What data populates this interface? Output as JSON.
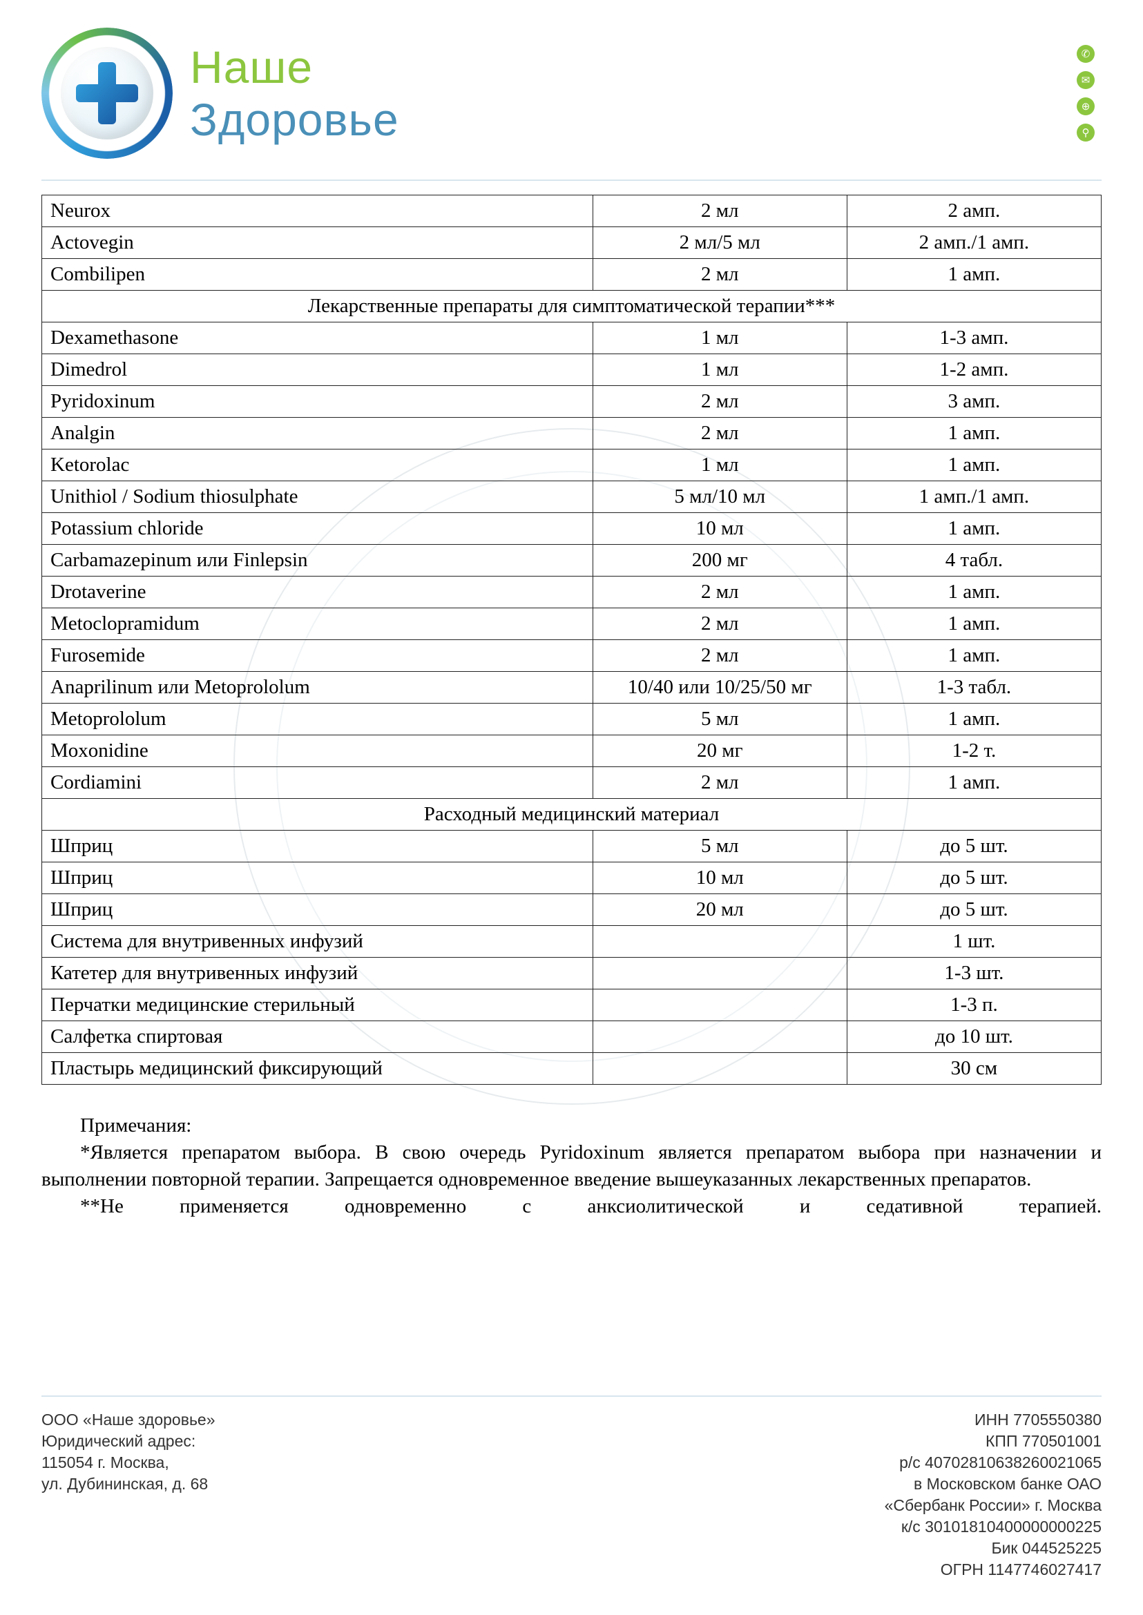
{
  "brand": {
    "line1": "Наше",
    "line2": "Здоровье"
  },
  "colors": {
    "brand_green": "#8cc63f",
    "brand_blue": "#4a90b8",
    "rule": "#d8e6ee",
    "table_border": "#222222",
    "text": "#000000",
    "footer_text": "#333333",
    "watermark": "#d0d8dd"
  },
  "typography": {
    "body_font": "Times New Roman",
    "body_size_pt": 14,
    "brand_font": "Arial",
    "brand_size_pt": 50,
    "footer_font": "Arial",
    "footer_size_pt": 11
  },
  "sections": [
    {
      "header": null,
      "rows": [
        {
          "name": "Neurox",
          "dose": "2 мл",
          "qty": "2 амп."
        },
        {
          "name": "Actovegin",
          "dose": "2 мл/5 мл",
          "qty": "2 амп./1 амп."
        },
        {
          "name": "Combilipen",
          "dose": "2 мл",
          "qty": "1 амп."
        }
      ]
    },
    {
      "header": "Лекарственные препараты для симптоматической терапии***",
      "rows": [
        {
          "name": "Dexamethasone",
          "dose": "1 мл",
          "qty": "1-3 амп."
        },
        {
          "name": "Dimedrol",
          "dose": "1 мл",
          "qty": "1-2 амп."
        },
        {
          "name": "Pyridoxinum",
          "dose": "2 мл",
          "qty": "3 амп."
        },
        {
          "name": "Analgin",
          "dose": "2 мл",
          "qty": "1 амп."
        },
        {
          "name": "Ketorolac",
          "dose": "1 мл",
          "qty": "1 амп."
        },
        {
          "name": "Unithiol / Sodium thiosulphate",
          "dose": "5 мл/10 мл",
          "qty": "1 амп./1 амп."
        },
        {
          "name": "Potassium chloride",
          "dose": "10 мл",
          "qty": "1 амп."
        },
        {
          "name": "Carbamazepinum или Finlepsin",
          "dose": "200 мг",
          "qty": "4 табл."
        },
        {
          "name": "Drotaverine",
          "dose": "2 мл",
          "qty": "1 амп."
        },
        {
          "name": "Metoclopramidum",
          "dose": "2 мл",
          "qty": "1 амп."
        },
        {
          "name": "Furosemide",
          "dose": "2 мл",
          "qty": "1 амп."
        },
        {
          "name": "Anaprilinum или Metoprololum",
          "dose": "10/40 или 10/25/50 мг",
          "qty": "1-3 табл."
        },
        {
          "name": "Metoprololum",
          "dose": "5 мл",
          "qty": "1 амп."
        },
        {
          "name": "Moxonidine",
          "dose": "20 мг",
          "qty": "1-2 т."
        },
        {
          "name": "Cordiamini",
          "dose": "2 мл",
          "qty": "1 амп."
        }
      ]
    },
    {
      "header": "Расходный медицинский материал",
      "rows": [
        {
          "name": "Шприц",
          "dose": "5 мл",
          "qty": "до 5 шт."
        },
        {
          "name": "Шприц",
          "dose": "10 мл",
          "qty": "до 5 шт."
        },
        {
          "name": "Шприц",
          "dose": "20 мл",
          "qty": "до 5 шт."
        },
        {
          "name": "Система для внутривенных инфузий",
          "dose": "",
          "qty": "1 шт."
        },
        {
          "name": "Катетер для внутривенных инфузий",
          "dose": "",
          "qty": "1-3 шт."
        },
        {
          "name": "Перчатки медицинские стерильный",
          "dose": "",
          "qty": "1-3 п."
        },
        {
          "name": "Салфетка спиртовая",
          "dose": "",
          "qty": "до 10 шт."
        },
        {
          "name": "Пластырь медицинский фиксирующий",
          "dose": "",
          "qty": "30 см"
        }
      ]
    }
  ],
  "notes": {
    "title": "Примечания:",
    "p1": "*Является препаратом выбора. В свою очередь Pyridoxinum является препаратом выбора при назначении и выполнении повторной терапии. Запрещается одновременное введение вышеуказанных лекарственных препаратов.",
    "p2": "**Не применяется одновременно с анксиолитической и седативной терапией."
  },
  "footer": {
    "left": [
      "ООО «Наше здоровье»",
      "Юридический адрес:",
      "115054 г. Москва,",
      "ул. Дубининская, д. 68"
    ],
    "right": [
      "ИНН 7705550380",
      "КПП 770501001",
      "р/с 40702810638260021065",
      "в Московском банке ОАО",
      "«Сбербанк России» г. Москва",
      "к/с 30101810400000000225",
      "Бик 044525225",
      "ОГРН 1147746027417"
    ]
  }
}
